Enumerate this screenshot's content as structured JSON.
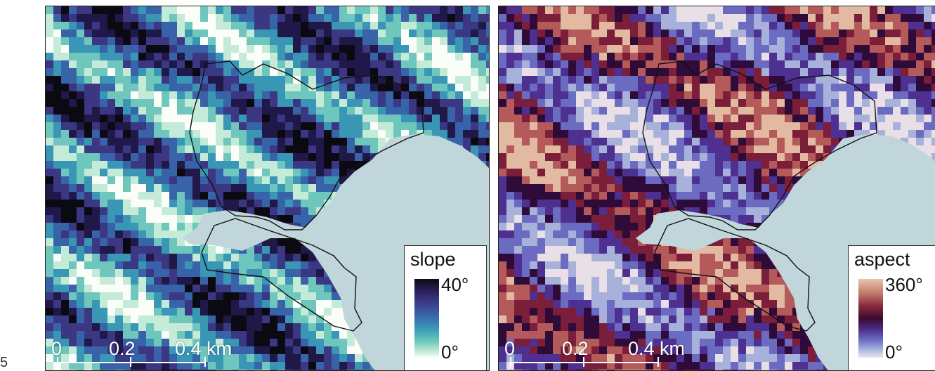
{
  "edge_mark": "5",
  "panels": [
    {
      "legend": {
        "title": "slope",
        "max_label": "40°",
        "min_label": "0°"
      },
      "scale": {
        "labels": [
          "0",
          "0.2",
          "0.4 km"
        ]
      },
      "colormap": [
        "#fbfef8",
        "#c3ebd7",
        "#6fc6bd",
        "#3a96b5",
        "#3863a8",
        "#3b3783",
        "#1f1848",
        "#0b0a12"
      ]
    },
    {
      "legend": {
        "title": "aspect",
        "max_label": "360°",
        "min_label": "0°"
      },
      "scale": {
        "labels": [
          "0",
          "0.2",
          "0.4 km"
        ]
      },
      "colormap": [
        "#e9dfe6",
        "#a8b1d9",
        "#6c6bc2",
        "#4e3090",
        "#2f0b3a",
        "#7a1e39",
        "#b55a5a",
        "#e2b9a1"
      ]
    }
  ],
  "water_color": "#c1d6db",
  "outline_color": "#111111"
}
